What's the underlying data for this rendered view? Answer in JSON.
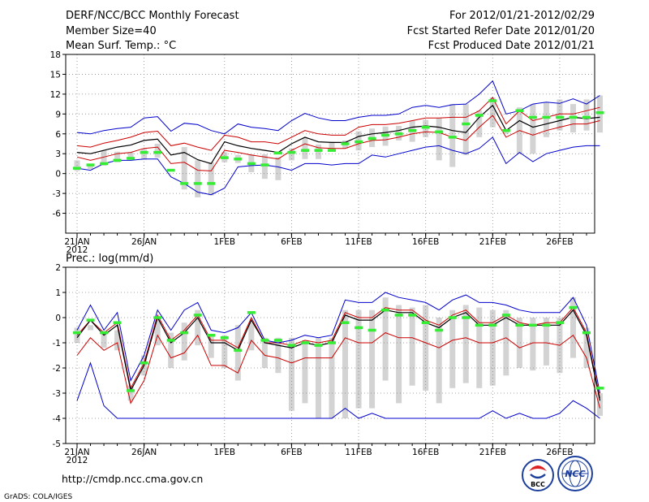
{
  "header": {
    "title": "DERF/NCC/BCC Monthly Forecast",
    "member_size": "Member Size=40",
    "variable": "Mean Surf. Temp.: °C",
    "period": "For 2012/01/21-2012/02/29",
    "fcst_started": "Fcst Started Refer Date 2012/01/20",
    "fcst_produced": "Fcst Produced Date 2012/01/21"
  },
  "footer": {
    "url": "http://cmdp.ncc.cma.gov.cn",
    "grads": "GrADS: COLA/IGES",
    "logo_bcc": "BCC",
    "logo_ncc": "NCC"
  },
  "colors": {
    "max_min": "#0000cc",
    "spread": "#cc0000",
    "mean": "#000000",
    "boxes": "#d3d3d3",
    "obs": "#33ee33",
    "grid": "#888888"
  },
  "chart_data": [
    {
      "type": "line",
      "id": "temperature",
      "title": "Mean Surf. Temp.: °C",
      "ylim": [
        -9,
        18
      ],
      "yticks": [
        -6,
        -3,
        0,
        3,
        6,
        9,
        12,
        15,
        18
      ],
      "day_range": [
        0,
        38
      ],
      "xticks": [
        {
          "day": 0,
          "label": "21JAN",
          "sublabel": "2012"
        },
        {
          "day": 5,
          "label": "26JAN"
        },
        {
          "day": 11,
          "label": "1FEB"
        },
        {
          "day": 16,
          "label": "6FEB"
        },
        {
          "day": 21,
          "label": "11FEB"
        },
        {
          "day": 26,
          "label": "16FEB"
        },
        {
          "day": 31,
          "label": "21FEB"
        },
        {
          "day": 36,
          "label": "26FEB"
        }
      ],
      "series": [
        {
          "name": "max",
          "values": [
            6.2,
            6,
            6.5,
            6.8,
            7,
            8.4,
            8.6,
            6.4,
            7.6,
            7.4,
            6.5,
            6,
            7.5,
            7,
            6.8,
            6.5,
            8,
            9.1,
            8.4,
            8,
            8,
            8.5,
            8.8,
            8.8,
            9,
            10,
            10.3,
            10,
            10.4,
            10.5,
            12,
            14,
            9,
            9.5,
            10.5,
            10.8,
            10.6,
            11.3,
            10.5,
            11.8
          ]
        },
        {
          "name": "upper",
          "values": [
            4.2,
            4,
            4.6,
            5,
            5.5,
            6.2,
            6.4,
            4.2,
            4.6,
            4,
            3.5,
            5.8,
            5.5,
            4.8,
            4.8,
            4.5,
            5.5,
            6.5,
            6,
            5.8,
            5.8,
            7,
            7.4,
            7.4,
            7.6,
            8,
            8.4,
            8.4,
            8.5,
            8.5,
            9.5,
            11.5,
            7.5,
            9.5,
            8,
            8.5,
            9,
            9,
            9.5,
            10
          ]
        },
        {
          "name": "mean",
          "values": [
            3.2,
            3,
            3.5,
            4,
            4.3,
            5,
            5.2,
            2.8,
            3.2,
            2.1,
            1.5,
            4.8,
            4.2,
            3.8,
            3.5,
            3.2,
            4.5,
            5.5,
            4.8,
            4.7,
            4.7,
            5.6,
            6,
            6.2,
            6.5,
            7,
            7.2,
            7,
            6.5,
            6.2,
            8.5,
            10.3,
            6.5,
            8,
            7,
            7.5,
            8,
            8.5,
            8.3,
            8.5
          ]
        },
        {
          "name": "lower",
          "values": [
            2.5,
            2,
            2.5,
            3,
            3.2,
            3.8,
            4,
            1.5,
            1.7,
            0.5,
            0.4,
            3.5,
            3.2,
            2.8,
            2.5,
            2.2,
            3.5,
            4.5,
            3.9,
            3.8,
            3.8,
            4.5,
            5,
            5.1,
            5.5,
            6,
            6.3,
            6.2,
            5.5,
            5,
            7,
            8.8,
            5.5,
            6.5,
            5.8,
            6.5,
            7,
            7.5,
            7.5,
            8
          ]
        },
        {
          "name": "min",
          "values": [
            0.8,
            0.5,
            1.5,
            2,
            2,
            2.2,
            2.2,
            -0.5,
            -1.5,
            -2.8,
            -3.2,
            -2.2,
            1,
            1.2,
            1.3,
            1,
            0.5,
            1.5,
            1.5,
            1.3,
            1.5,
            1.5,
            2.8,
            2.5,
            3,
            3.5,
            4,
            4.2,
            3.5,
            3,
            3.8,
            5.5,
            1.5,
            3.2,
            1.8,
            3,
            3.5,
            4,
            4.2,
            4.2
          ]
        },
        {
          "name": "box_high",
          "values": [
            2,
            1.5,
            3.5,
            3.3,
            3.2,
            3.7,
            4.5,
            0.6,
            4,
            2,
            1.7,
            3.2,
            2.8,
            2.9,
            2.9,
            2.5,
            3.8,
            5.4,
            4.4,
            4.8,
            5,
            6.4,
            6.8,
            7.1,
            7.2,
            8,
            8.1,
            8.4,
            10.5,
            10.5,
            9.5,
            11.5,
            6.5,
            10,
            10.5,
            10.7,
            11.2,
            10.5,
            11.2,
            11.8
          ]
        },
        {
          "name": "box_low",
          "values": [
            0.4,
            0.7,
            1.2,
            1.7,
            2.2,
            2.1,
            2.4,
            0.3,
            -2.4,
            -3.6,
            -3.3,
            1.7,
            1.6,
            0.2,
            -0.8,
            -1,
            2,
            2.2,
            2.2,
            3.5,
            3.8,
            3.5,
            4,
            4.2,
            5,
            4.8,
            5.5,
            2,
            1,
            2.8,
            5.5,
            7,
            6,
            3,
            3,
            5.5,
            6.5,
            6.2,
            6.5,
            6.2
          ]
        },
        {
          "name": "observed",
          "values": [
            0.8,
            1.3,
            1.5,
            2,
            2.3,
            3.2,
            3.2,
            0.5,
            -1.5,
            -1.5,
            -1.5,
            2.4,
            2.2,
            1.5,
            1.3,
            3.1,
            3.2,
            3.5,
            3.5,
            3.5,
            4.5,
            4.8,
            5.3,
            5.8,
            6,
            6.5,
            7,
            6.3,
            5.5,
            7.5,
            8.8,
            11,
            6.5,
            9.5,
            8.5,
            8.5,
            8.5,
            8.5,
            8.5,
            9.2
          ]
        }
      ]
    },
    {
      "type": "line",
      "id": "precipitation",
      "title": "Prec.: log(mm/d)",
      "ylim": [
        -5,
        2
      ],
      "yticks": [
        -5,
        -4,
        -3,
        -2,
        -1,
        0,
        1,
        2
      ],
      "day_range": [
        0,
        38
      ],
      "xticks": [
        {
          "day": 0,
          "label": "21JAN",
          "sublabel": "2012"
        },
        {
          "day": 5,
          "label": "26JAN"
        },
        {
          "day": 11,
          "label": "1FEB"
        },
        {
          "day": 16,
          "label": "6FEB"
        },
        {
          "day": 21,
          "label": "11FEB"
        },
        {
          "day": 26,
          "label": "16FEB"
        },
        {
          "day": 31,
          "label": "21FEB"
        },
        {
          "day": 36,
          "label": "26FEB"
        }
      ],
      "series": [
        {
          "name": "max",
          "values": [
            -0.5,
            0.5,
            -0.5,
            0.2,
            -2.5,
            -1.5,
            0.3,
            -0.5,
            0.3,
            0.6,
            -0.5,
            -0.6,
            -0.4,
            0.2,
            -0.9,
            -1,
            -0.9,
            -0.7,
            -0.8,
            -0.7,
            0.7,
            0.6,
            0.6,
            1,
            0.8,
            0.7,
            0.6,
            0.3,
            0.7,
            0.9,
            0.6,
            0.6,
            0.5,
            0.3,
            0.2,
            0.2,
            0.2,
            0.8,
            -0.3,
            -3
          ]
        },
        {
          "name": "upper",
          "values": [
            -0.7,
            -0.1,
            -0.6,
            -0.2,
            -2.8,
            -1.8,
            0.1,
            -0.9,
            -0.5,
            0.1,
            -0.9,
            -0.9,
            -1.2,
            0,
            -1,
            -1,
            -1.1,
            -0.9,
            -1,
            -0.9,
            0.2,
            0,
            0,
            0.4,
            0.3,
            0.3,
            -0.1,
            -0.3,
            0.1,
            0.3,
            -0.2,
            -0.2,
            0.1,
            -0.2,
            -0.3,
            -0.2,
            -0.2,
            0.4,
            -0.6,
            -3.2
          ]
        },
        {
          "name": "mean",
          "values": [
            -0.8,
            -0.1,
            -0.7,
            -0.3,
            -2.9,
            -1.9,
            0,
            -1,
            -0.6,
            0,
            -1,
            -1,
            -1.3,
            -0.1,
            -1,
            -1.1,
            -1.2,
            -1,
            -1.1,
            -1,
            0.1,
            -0.1,
            -0.1,
            0.3,
            0.2,
            0.2,
            -0.2,
            -0.4,
            0,
            0.2,
            -0.3,
            -0.3,
            0,
            -0.3,
            -0.3,
            -0.3,
            -0.3,
            0.3,
            -0.7,
            -3.3
          ]
        },
        {
          "name": "lower",
          "values": [
            -1.5,
            -0.8,
            -1.3,
            -1,
            -3.4,
            -2.5,
            -0.7,
            -1.6,
            -1.4,
            -0.7,
            -1.9,
            -1.9,
            -2.2,
            -0.9,
            -1.5,
            -1.6,
            -1.8,
            -1.6,
            -1.6,
            -1.6,
            -0.8,
            -1,
            -1,
            -0.6,
            -0.8,
            -0.8,
            -1,
            -1.2,
            -0.9,
            -0.8,
            -1,
            -1,
            -0.8,
            -1.2,
            -1,
            -1,
            -1.1,
            -0.7,
            -1.6,
            -3.6
          ]
        },
        {
          "name": "min",
          "values": [
            -3.3,
            -1.8,
            -3.5,
            -4,
            -4,
            -4,
            -4,
            -4,
            -4,
            -4,
            -4,
            -4,
            -4,
            -4,
            -4,
            -4,
            -4,
            -4,
            -4,
            -4,
            -3.6,
            -4,
            -3.8,
            -4,
            -4,
            -4,
            -4,
            -4,
            -4,
            -4,
            -4,
            -3.7,
            -4,
            -3.8,
            -4,
            -4,
            -3.8,
            -3.3,
            -3.6,
            -4
          ]
        },
        {
          "name": "box_high",
          "values": [
            -0.4,
            -0.3,
            -0.6,
            -0.5,
            -2.7,
            -1.5,
            0,
            -0.6,
            -0.2,
            0.3,
            -0.7,
            -0.7,
            -0.3,
            -0.2,
            -0.8,
            -0.8,
            -0.8,
            -0.9,
            -0.8,
            -0.8,
            0.3,
            0.3,
            0.3,
            0.8,
            0.5,
            0.4,
            0.5,
            0,
            0.3,
            0.5,
            0.4,
            0.3,
            0.3,
            0,
            0,
            0,
            0,
            0.8,
            -0.4,
            -3
          ]
        },
        {
          "name": "box_low",
          "values": [
            -1,
            -0.5,
            -1.2,
            -1.3,
            -3.3,
            -2.3,
            -1.1,
            -2,
            -1.7,
            -1.1,
            -1.6,
            -2,
            -2.5,
            -1.3,
            -2,
            -2.2,
            -3.7,
            -3.4,
            -4,
            -4,
            -4,
            -3.6,
            -3.6,
            -2.5,
            -3.4,
            -2.7,
            -2.9,
            -3.4,
            -2.8,
            -2.6,
            -2.8,
            -2.7,
            -2.3,
            -2,
            -2.1,
            -1.9,
            -2.2,
            -1.6,
            -2,
            -3.9
          ]
        },
        {
          "name": "observed",
          "values": [
            -0.6,
            -0.1,
            -0.6,
            -0.2,
            -2.9,
            -1.8,
            0,
            -0.9,
            -0.6,
            0.1,
            -0.7,
            -0.8,
            -1.3,
            0.2,
            -0.9,
            -0.9,
            -1.1,
            -1,
            -1.1,
            -1,
            -0.2,
            -0.4,
            -0.5,
            0.3,
            0.1,
            0.1,
            -0.2,
            -0.5,
            0,
            0,
            -0.3,
            -0.3,
            0.1,
            -0.3,
            -0.3,
            -0.3,
            -0.2,
            0.4,
            -0.6,
            -2.8
          ]
        }
      ]
    }
  ]
}
